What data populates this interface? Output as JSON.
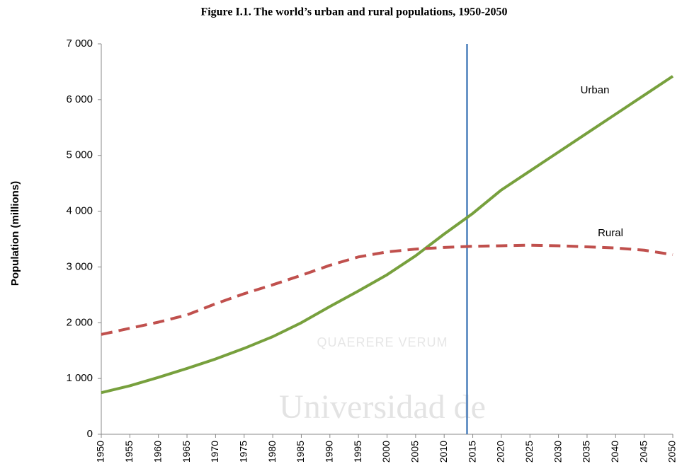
{
  "chart_data": {
    "type": "line",
    "title": "Figure I.1. The world’s urban and rural populations, 1950-2050",
    "y_label": "Population (millions)",
    "x": [
      1950,
      1955,
      1960,
      1965,
      1970,
      1975,
      1980,
      1985,
      1990,
      1995,
      2000,
      2005,
      2010,
      2015,
      2020,
      2025,
      2030,
      2035,
      2040,
      2045,
      2050
    ],
    "xlim": [
      1950,
      2050
    ],
    "xticks": [
      1950,
      1955,
      1960,
      1965,
      1970,
      1975,
      1980,
      1985,
      1990,
      1995,
      2000,
      2005,
      2010,
      2015,
      2020,
      2025,
      2030,
      2035,
      2040,
      2045,
      2050
    ],
    "ylim": [
      0,
      7000
    ],
    "yticks": [
      0,
      {
        "value": 1000,
        "label": "1 000"
      },
      {
        "value": 2000,
        "label": "2 000"
      },
      {
        "value": 3000,
        "label": "3 000"
      },
      {
        "value": 4000,
        "label": "4 000"
      },
      {
        "value": 5000,
        "label": "5 000"
      },
      {
        "value": 6000,
        "label": "6 000"
      },
      {
        "value": 7000,
        "label": "7 000"
      }
    ],
    "grid": false,
    "vertical_line": {
      "x": 2014,
      "color": "#4a7ebb"
    },
    "series": [
      {
        "name": "Urban",
        "color": "#77a03d",
        "dashed": false,
        "values": [
          746,
          870,
          1020,
          1180,
          1350,
          1540,
          1750,
          2000,
          2290,
          2570,
          2860,
          3200,
          3590,
          3960,
          4380,
          4720,
          5060,
          5400,
          5740,
          6080,
          6420
        ]
      },
      {
        "name": "Rural",
        "color": "#c0504d",
        "dashed": true,
        "values": [
          1790,
          1900,
          2010,
          2140,
          2340,
          2520,
          2680,
          2850,
          3030,
          3180,
          3270,
          3320,
          3350,
          3370,
          3380,
          3390,
          3380,
          3360,
          3340,
          3300,
          3220
        ]
      }
    ],
    "watermark": [
      "QUAERERE VERUM",
      "Universidad de"
    ]
  }
}
